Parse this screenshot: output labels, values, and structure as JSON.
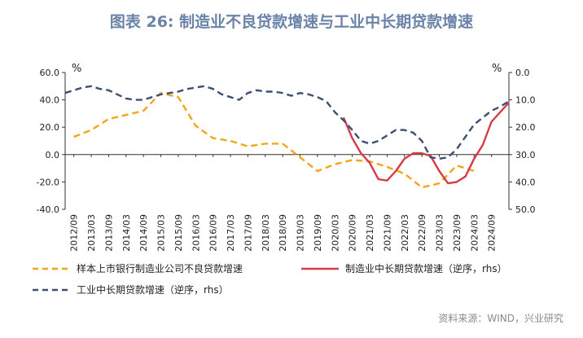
{
  "page_title": "图表 26: 制造业不良贷款增速与工业中长期贷款增速",
  "source": "资料来源：WIND，兴业研究",
  "colors": {
    "orange": "#f3a516",
    "red": "#d63c46",
    "navy": "#3d4f73",
    "title": "#6b83a8"
  },
  "chart_data": {
    "type": "line",
    "title": "图表 26: 制造业不良贷款增速与工业中长期贷款增速",
    "left_axis": {
      "unit": "%",
      "min": -40,
      "max": 60,
      "ticks": [
        "60.0",
        "40.0",
        "20.0",
        "0.0",
        "-20.0",
        "-40.0"
      ]
    },
    "right_axis": {
      "unit": "%",
      "min": 0,
      "max": 50,
      "inverted": true,
      "ticks": [
        "0.0",
        "10.0",
        "20.0",
        "30.0",
        "40.0",
        "50.0"
      ]
    },
    "x_labels": [
      "2012/09",
      "2013/03",
      "2013/09",
      "2014/03",
      "2014/09",
      "2015/03",
      "2015/09",
      "2016/03",
      "2016/09",
      "2017/03",
      "2017/09",
      "2018/03",
      "2018/09",
      "2019/03",
      "2019/09",
      "2020/03",
      "2020/09",
      "2021/03",
      "2021/09",
      "2022/03",
      "2022/09",
      "2023/03",
      "2023/09",
      "2024/03",
      "2024/09"
    ],
    "series": [
      {
        "name": "样本上市银行制造业公司不良贷款增速",
        "axis": "left",
        "style": "dashed",
        "color": "#f3a516",
        "points": [
          [
            0.5,
            13
          ],
          [
            1.5,
            18
          ],
          [
            2.5,
            26
          ],
          [
            3.5,
            29
          ],
          [
            4.5,
            32
          ],
          [
            5.5,
            45
          ],
          [
            6.5,
            42
          ],
          [
            7.5,
            21
          ],
          [
            8.5,
            12
          ],
          [
            9.5,
            10
          ],
          [
            10.5,
            6
          ],
          [
            11.5,
            8
          ],
          [
            12.5,
            8
          ],
          [
            13.5,
            -2
          ],
          [
            14.5,
            -12
          ],
          [
            15.5,
            -7
          ],
          [
            16.5,
            -4
          ],
          [
            17.5,
            -5
          ],
          [
            18.5,
            -9
          ],
          [
            19.5,
            -14
          ],
          [
            20.5,
            -24
          ],
          [
            21.5,
            -21
          ],
          [
            22.5,
            -8
          ],
          [
            23.5,
            -12
          ]
        ]
      },
      {
        "name": "制造业中长期贷款增速（逆序，rhs）",
        "axis": "right",
        "style": "solid",
        "color": "#d63c46",
        "points": [
          [
            16,
            16.5
          ],
          [
            16.5,
            24
          ],
          [
            17,
            29.5
          ],
          [
            17.5,
            33
          ],
          [
            18,
            39
          ],
          [
            18.5,
            39.5
          ],
          [
            19,
            36
          ],
          [
            19.5,
            31.5
          ],
          [
            20,
            29.5
          ],
          [
            20.5,
            29.5
          ],
          [
            21,
            30.5
          ],
          [
            21.5,
            36
          ],
          [
            22,
            40.5
          ],
          [
            22.5,
            40
          ],
          [
            23,
            38
          ],
          [
            23.5,
            31.5
          ],
          [
            24,
            26.5
          ],
          [
            24.5,
            18
          ],
          [
            25,
            14.5
          ],
          [
            25.5,
            11
          ]
        ]
      },
      {
        "name": "工业中长期贷款增速（逆序，rhs）",
        "axis": "right",
        "style": "dashed",
        "color": "#3d4f73",
        "points": [
          [
            0,
            7.5
          ],
          [
            0.5,
            6.5
          ],
          [
            1,
            5.5
          ],
          [
            1.5,
            5
          ],
          [
            2,
            6
          ],
          [
            2.5,
            6.5
          ],
          [
            3,
            8
          ],
          [
            3.5,
            9.5
          ],
          [
            4,
            10
          ],
          [
            4.5,
            10
          ],
          [
            5,
            9
          ],
          [
            5.5,
            8
          ],
          [
            6,
            7.5
          ],
          [
            6.5,
            7
          ],
          [
            7,
            6
          ],
          [
            7.5,
            5.5
          ],
          [
            8,
            5
          ],
          [
            8.5,
            6
          ],
          [
            9,
            8
          ],
          [
            9.5,
            9
          ],
          [
            10,
            10
          ],
          [
            10.5,
            7.5
          ],
          [
            11,
            6.5
          ],
          [
            11.5,
            7
          ],
          [
            12,
            7
          ],
          [
            12.5,
            7.5
          ],
          [
            13,
            8.5
          ],
          [
            13.5,
            7.5
          ],
          [
            14,
            8
          ],
          [
            14.5,
            9
          ],
          [
            15,
            10.5
          ],
          [
            15.5,
            14.5
          ],
          [
            16,
            17.5
          ],
          [
            16.5,
            21
          ],
          [
            17,
            25
          ],
          [
            17.5,
            26
          ],
          [
            18,
            25
          ],
          [
            18.5,
            23
          ],
          [
            19,
            21
          ],
          [
            19.5,
            21
          ],
          [
            20,
            22
          ],
          [
            20.5,
            25
          ],
          [
            21,
            31
          ],
          [
            21.5,
            31.5
          ],
          [
            22,
            31
          ],
          [
            22.5,
            28
          ],
          [
            23,
            23.5
          ],
          [
            23.5,
            19
          ],
          [
            24,
            16.5
          ],
          [
            24.5,
            14
          ],
          [
            25,
            12.5
          ],
          [
            25.5,
            10.5
          ]
        ]
      }
    ]
  }
}
